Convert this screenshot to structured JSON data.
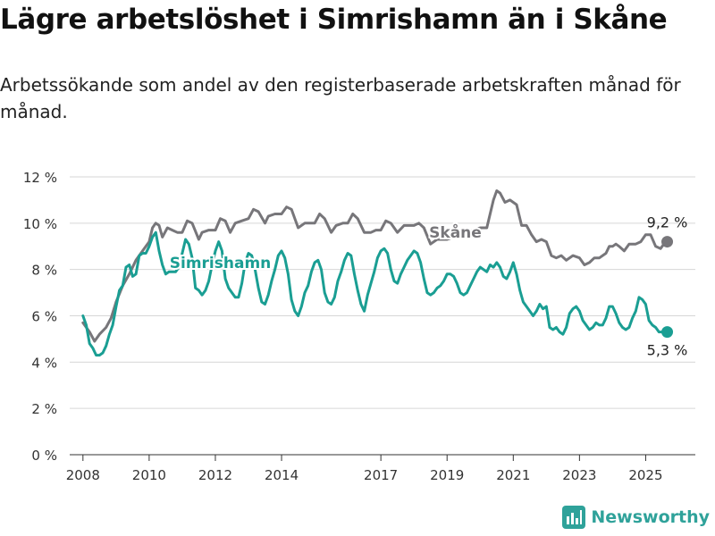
{
  "header": {
    "title": "Lägre arbetslöshet i Simrishamn än i Skåne",
    "subtitle": "Arbetssökande som andel av den registerbaserade arbetskraften månad för månad."
  },
  "brand": {
    "name": "Newsworthy",
    "icon": "bar-chart-logo-icon",
    "color": "#2fa29a"
  },
  "chart_data": {
    "type": "line",
    "title": "",
    "xlabel": "",
    "ylabel": "",
    "x_range": [
      2007.6,
      2026.5
    ],
    "ylim": [
      0,
      12
    ],
    "grid": true,
    "x_ticks": [
      {
        "value": 2008,
        "label": "2008"
      },
      {
        "value": 2010,
        "label": "2010"
      },
      {
        "value": 2012,
        "label": "2012"
      },
      {
        "value": 2014,
        "label": "2014"
      },
      {
        "value": 2017,
        "label": "2017"
      },
      {
        "value": 2019,
        "label": "2019"
      },
      {
        "value": 2021,
        "label": "2021"
      },
      {
        "value": 2023,
        "label": "2023"
      },
      {
        "value": 2025,
        "label": "2025"
      }
    ],
    "y_ticks": [
      {
        "value": 0,
        "label": "0 %"
      },
      {
        "value": 2,
        "label": "2 %"
      },
      {
        "value": 4,
        "label": "4 %"
      },
      {
        "value": 6,
        "label": "6 %"
      },
      {
        "value": 8,
        "label": "8 %"
      },
      {
        "value": 10,
        "label": "10 %"
      },
      {
        "value": 12,
        "label": "12 %"
      }
    ],
    "series": [
      {
        "name": "Skåne",
        "color": "#77767a",
        "label_at": [
          2019.25,
          9.6
        ],
        "end_label": "9,2 %",
        "points": [
          [
            2008.0,
            5.7
          ],
          [
            2008.2,
            5.3
          ],
          [
            2008.35,
            4.9
          ],
          [
            2008.5,
            5.2
          ],
          [
            2008.7,
            5.5
          ],
          [
            2008.85,
            5.9
          ],
          [
            2009.0,
            6.6
          ],
          [
            2009.2,
            7.3
          ],
          [
            2009.4,
            7.8
          ],
          [
            2009.6,
            8.4
          ],
          [
            2009.8,
            8.8
          ],
          [
            2010.0,
            9.2
          ],
          [
            2010.1,
            9.8
          ],
          [
            2010.2,
            10.0
          ],
          [
            2010.3,
            9.9
          ],
          [
            2010.4,
            9.4
          ],
          [
            2010.55,
            9.8
          ],
          [
            2010.7,
            9.7
          ],
          [
            2010.85,
            9.6
          ],
          [
            2011.0,
            9.6
          ],
          [
            2011.15,
            10.1
          ],
          [
            2011.3,
            10.0
          ],
          [
            2011.5,
            9.3
          ],
          [
            2011.6,
            9.6
          ],
          [
            2011.8,
            9.7
          ],
          [
            2012.0,
            9.7
          ],
          [
            2012.15,
            10.2
          ],
          [
            2012.3,
            10.1
          ],
          [
            2012.45,
            9.6
          ],
          [
            2012.6,
            10.0
          ],
          [
            2012.8,
            10.1
          ],
          [
            2013.0,
            10.2
          ],
          [
            2013.15,
            10.6
          ],
          [
            2013.3,
            10.5
          ],
          [
            2013.5,
            10.0
          ],
          [
            2013.6,
            10.3
          ],
          [
            2013.8,
            10.4
          ],
          [
            2014.0,
            10.4
          ],
          [
            2014.15,
            10.7
          ],
          [
            2014.3,
            10.6
          ],
          [
            2014.5,
            9.8
          ],
          [
            2014.7,
            10.0
          ],
          [
            2014.85,
            10.0
          ],
          [
            2015.0,
            10.0
          ],
          [
            2015.15,
            10.4
          ],
          [
            2015.3,
            10.2
          ],
          [
            2015.5,
            9.6
          ],
          [
            2015.65,
            9.9
          ],
          [
            2015.85,
            10.0
          ],
          [
            2016.0,
            10.0
          ],
          [
            2016.15,
            10.4
          ],
          [
            2016.3,
            10.2
          ],
          [
            2016.5,
            9.6
          ],
          [
            2016.7,
            9.6
          ],
          [
            2016.85,
            9.7
          ],
          [
            2017.0,
            9.7
          ],
          [
            2017.15,
            10.1
          ],
          [
            2017.3,
            10.0
          ],
          [
            2017.5,
            9.6
          ],
          [
            2017.7,
            9.9
          ],
          [
            2017.85,
            9.9
          ],
          [
            2018.0,
            9.9
          ],
          [
            2018.15,
            10.0
          ],
          [
            2018.3,
            9.8
          ],
          [
            2018.5,
            9.1
          ],
          [
            2018.7,
            9.3
          ],
          [
            2018.85,
            9.3
          ],
          [
            2019.0,
            9.3
          ],
          [
            2020.0,
            9.8
          ],
          [
            2020.2,
            9.8
          ],
          [
            2020.4,
            11.0
          ],
          [
            2020.5,
            11.4
          ],
          [
            2020.6,
            11.3
          ],
          [
            2020.75,
            10.9
          ],
          [
            2020.9,
            11.0
          ],
          [
            2021.0,
            10.9
          ],
          [
            2021.1,
            10.8
          ],
          [
            2021.25,
            9.9
          ],
          [
            2021.4,
            9.9
          ],
          [
            2021.55,
            9.5
          ],
          [
            2021.7,
            9.2
          ],
          [
            2021.85,
            9.3
          ],
          [
            2022.0,
            9.2
          ],
          [
            2022.15,
            8.6
          ],
          [
            2022.3,
            8.5
          ],
          [
            2022.45,
            8.6
          ],
          [
            2022.6,
            8.4
          ],
          [
            2022.8,
            8.6
          ],
          [
            2023.0,
            8.5
          ],
          [
            2023.15,
            8.2
          ],
          [
            2023.3,
            8.3
          ],
          [
            2023.45,
            8.5
          ],
          [
            2023.6,
            8.5
          ],
          [
            2023.8,
            8.7
          ],
          [
            2023.9,
            9.0
          ],
          [
            2024.0,
            9.0
          ],
          [
            2024.1,
            9.1
          ],
          [
            2024.2,
            9.0
          ],
          [
            2024.35,
            8.8
          ],
          [
            2024.5,
            9.1
          ],
          [
            2024.7,
            9.1
          ],
          [
            2024.85,
            9.2
          ],
          [
            2025.0,
            9.5
          ],
          [
            2025.15,
            9.5
          ],
          [
            2025.3,
            9.0
          ],
          [
            2025.45,
            8.9
          ],
          [
            2025.6,
            9.2
          ],
          [
            2025.65,
            9.2
          ]
        ]
      },
      {
        "name": "Simrishamn",
        "color": "#1a9e93",
        "label_at": [
          2012.15,
          8.3
        ],
        "end_label": "5,3 %",
        "points": [
          [
            2008.0,
            6.0
          ],
          [
            2008.1,
            5.6
          ],
          [
            2008.2,
            4.8
          ],
          [
            2008.3,
            4.6
          ],
          [
            2008.4,
            4.3
          ],
          [
            2008.5,
            4.3
          ],
          [
            2008.6,
            4.4
          ],
          [
            2008.7,
            4.7
          ],
          [
            2008.8,
            5.2
          ],
          [
            2008.9,
            5.6
          ],
          [
            2009.0,
            6.4
          ],
          [
            2009.1,
            7.1
          ],
          [
            2009.2,
            7.3
          ],
          [
            2009.3,
            8.1
          ],
          [
            2009.4,
            8.2
          ],
          [
            2009.5,
            7.7
          ],
          [
            2009.6,
            7.8
          ],
          [
            2009.7,
            8.6
          ],
          [
            2009.8,
            8.7
          ],
          [
            2009.9,
            8.7
          ],
          [
            2010.0,
            9.0
          ],
          [
            2010.1,
            9.4
          ],
          [
            2010.2,
            9.6
          ],
          [
            2010.3,
            8.8
          ],
          [
            2010.4,
            8.2
          ],
          [
            2010.5,
            7.8
          ],
          [
            2010.6,
            7.9
          ],
          [
            2010.7,
            7.9
          ],
          [
            2010.8,
            7.9
          ],
          [
            2010.9,
            8.1
          ],
          [
            2011.0,
            8.7
          ],
          [
            2011.1,
            9.3
          ],
          [
            2011.2,
            9.1
          ],
          [
            2011.3,
            8.5
          ],
          [
            2011.4,
            7.2
          ],
          [
            2011.5,
            7.1
          ],
          [
            2011.6,
            6.9
          ],
          [
            2011.7,
            7.1
          ],
          [
            2011.8,
            7.5
          ],
          [
            2011.9,
            8.2
          ],
          [
            2012.0,
            8.8
          ],
          [
            2012.1,
            9.2
          ],
          [
            2012.2,
            8.8
          ],
          [
            2012.3,
            7.6
          ],
          [
            2012.4,
            7.2
          ],
          [
            2012.5,
            7.0
          ],
          [
            2012.6,
            6.8
          ],
          [
            2012.7,
            6.8
          ],
          [
            2012.8,
            7.4
          ],
          [
            2012.9,
            8.3
          ],
          [
            2013.0,
            8.7
          ],
          [
            2013.1,
            8.6
          ],
          [
            2013.2,
            8.0
          ],
          [
            2013.3,
            7.2
          ],
          [
            2013.4,
            6.6
          ],
          [
            2013.5,
            6.5
          ],
          [
            2013.6,
            6.9
          ],
          [
            2013.7,
            7.5
          ],
          [
            2013.8,
            8.0
          ],
          [
            2013.9,
            8.6
          ],
          [
            2014.0,
            8.8
          ],
          [
            2014.1,
            8.5
          ],
          [
            2014.2,
            7.8
          ],
          [
            2014.3,
            6.7
          ],
          [
            2014.4,
            6.2
          ],
          [
            2014.5,
            6.0
          ],
          [
            2014.6,
            6.4
          ],
          [
            2014.7,
            7.0
          ],
          [
            2014.8,
            7.3
          ],
          [
            2014.9,
            7.9
          ],
          [
            2015.0,
            8.3
          ],
          [
            2015.1,
            8.4
          ],
          [
            2015.2,
            8.0
          ],
          [
            2015.3,
            7.0
          ],
          [
            2015.4,
            6.6
          ],
          [
            2015.5,
            6.5
          ],
          [
            2015.6,
            6.8
          ],
          [
            2015.7,
            7.5
          ],
          [
            2015.8,
            7.9
          ],
          [
            2015.9,
            8.4
          ],
          [
            2016.0,
            8.7
          ],
          [
            2016.1,
            8.6
          ],
          [
            2016.2,
            7.8
          ],
          [
            2016.3,
            7.1
          ],
          [
            2016.4,
            6.5
          ],
          [
            2016.5,
            6.2
          ],
          [
            2016.6,
            6.9
          ],
          [
            2016.7,
            7.4
          ],
          [
            2016.8,
            7.9
          ],
          [
            2016.9,
            8.5
          ],
          [
            2017.0,
            8.8
          ],
          [
            2017.1,
            8.9
          ],
          [
            2017.2,
            8.7
          ],
          [
            2017.3,
            8.0
          ],
          [
            2017.4,
            7.5
          ],
          [
            2017.5,
            7.4
          ],
          [
            2017.6,
            7.8
          ],
          [
            2017.7,
            8.1
          ],
          [
            2017.8,
            8.4
          ],
          [
            2017.9,
            8.6
          ],
          [
            2018.0,
            8.8
          ],
          [
            2018.1,
            8.7
          ],
          [
            2018.2,
            8.3
          ],
          [
            2018.3,
            7.6
          ],
          [
            2018.4,
            7.0
          ],
          [
            2018.5,
            6.9
          ],
          [
            2018.6,
            7.0
          ],
          [
            2018.7,
            7.2
          ],
          [
            2018.8,
            7.3
          ],
          [
            2018.9,
            7.5
          ],
          [
            2019.0,
            7.8
          ],
          [
            2019.1,
            7.8
          ],
          [
            2019.2,
            7.7
          ],
          [
            2019.3,
            7.4
          ],
          [
            2019.4,
            7.0
          ],
          [
            2019.5,
            6.9
          ],
          [
            2019.6,
            7.0
          ],
          [
            2019.7,
            7.3
          ],
          [
            2019.8,
            7.6
          ],
          [
            2019.9,
            7.9
          ],
          [
            2020.0,
            8.1
          ],
          [
            2020.1,
            8.0
          ],
          [
            2020.2,
            7.9
          ],
          [
            2020.3,
            8.2
          ],
          [
            2020.4,
            8.1
          ],
          [
            2020.5,
            8.3
          ],
          [
            2020.6,
            8.1
          ],
          [
            2020.7,
            7.7
          ],
          [
            2020.8,
            7.6
          ],
          [
            2020.9,
            7.9
          ],
          [
            2021.0,
            8.3
          ],
          [
            2021.1,
            7.8
          ],
          [
            2021.2,
            7.1
          ],
          [
            2021.3,
            6.6
          ],
          [
            2021.4,
            6.4
          ],
          [
            2021.5,
            6.2
          ],
          [
            2021.6,
            6.0
          ],
          [
            2021.7,
            6.2
          ],
          [
            2021.8,
            6.5
          ],
          [
            2021.9,
            6.3
          ],
          [
            2022.0,
            6.4
          ],
          [
            2022.1,
            5.5
          ],
          [
            2022.2,
            5.4
          ],
          [
            2022.3,
            5.5
          ],
          [
            2022.4,
            5.3
          ],
          [
            2022.5,
            5.2
          ],
          [
            2022.6,
            5.5
          ],
          [
            2022.7,
            6.1
          ],
          [
            2022.8,
            6.3
          ],
          [
            2022.9,
            6.4
          ],
          [
            2023.0,
            6.2
          ],
          [
            2023.1,
            5.8
          ],
          [
            2023.2,
            5.6
          ],
          [
            2023.3,
            5.4
          ],
          [
            2023.4,
            5.5
          ],
          [
            2023.5,
            5.7
          ],
          [
            2023.6,
            5.6
          ],
          [
            2023.7,
            5.6
          ],
          [
            2023.8,
            5.9
          ],
          [
            2023.9,
            6.4
          ],
          [
            2024.0,
            6.4
          ],
          [
            2024.1,
            6.1
          ],
          [
            2024.2,
            5.7
          ],
          [
            2024.3,
            5.5
          ],
          [
            2024.4,
            5.4
          ],
          [
            2024.5,
            5.5
          ],
          [
            2024.6,
            5.9
          ],
          [
            2024.7,
            6.2
          ],
          [
            2024.8,
            6.8
          ],
          [
            2024.9,
            6.7
          ],
          [
            2025.0,
            6.5
          ],
          [
            2025.1,
            5.8
          ],
          [
            2025.2,
            5.6
          ],
          [
            2025.3,
            5.5
          ],
          [
            2025.4,
            5.3
          ],
          [
            2025.5,
            5.3
          ],
          [
            2025.6,
            5.3
          ],
          [
            2025.65,
            5.3
          ]
        ]
      }
    ]
  }
}
